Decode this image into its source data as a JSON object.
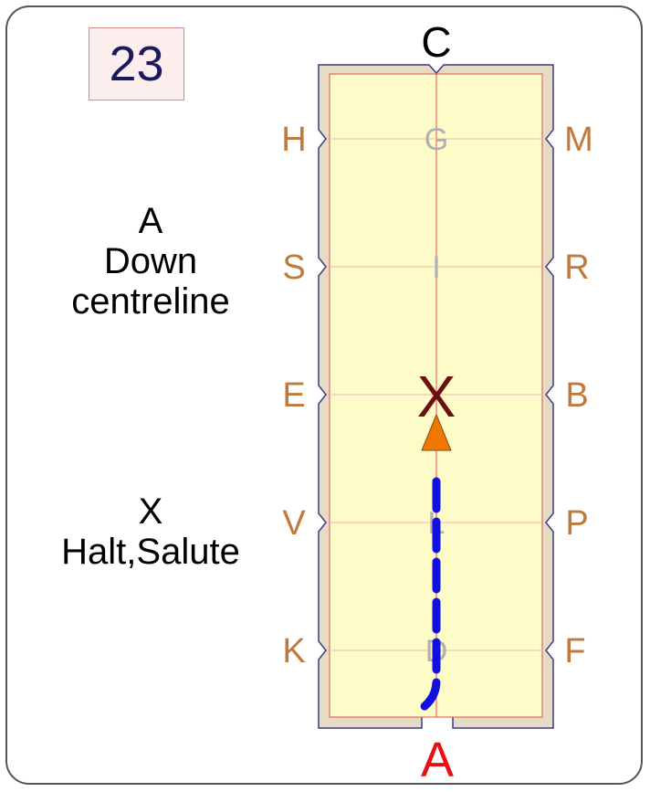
{
  "test_number": "23",
  "instructions": [
    {
      "marker": "A",
      "lines": [
        "Down",
        "centreline"
      ]
    },
    {
      "marker": "X",
      "lines": [
        "Halt,Salute"
      ]
    }
  ],
  "arena": {
    "end_markers": {
      "top": "C",
      "bottom": "A"
    },
    "left_markers": [
      "H",
      "S",
      "E",
      "V",
      "K"
    ],
    "right_markers": [
      "M",
      "R",
      "B",
      "P",
      "F"
    ],
    "centreline_letters": [
      "G",
      "I",
      "X",
      "L",
      "D"
    ],
    "highlight_letter": "X",
    "colors": {
      "sand": "#fdfbc8",
      "border": "#e6dcc4",
      "fence": "#3a3a8a",
      "inner_line": "#e05050",
      "marker_text": "#c07a3c",
      "top_letter": "#000000",
      "bottom_letter": "#e81010",
      "highlight_letter": "#6b1010",
      "arrow": "#f07800",
      "path": "#1010e0"
    }
  }
}
